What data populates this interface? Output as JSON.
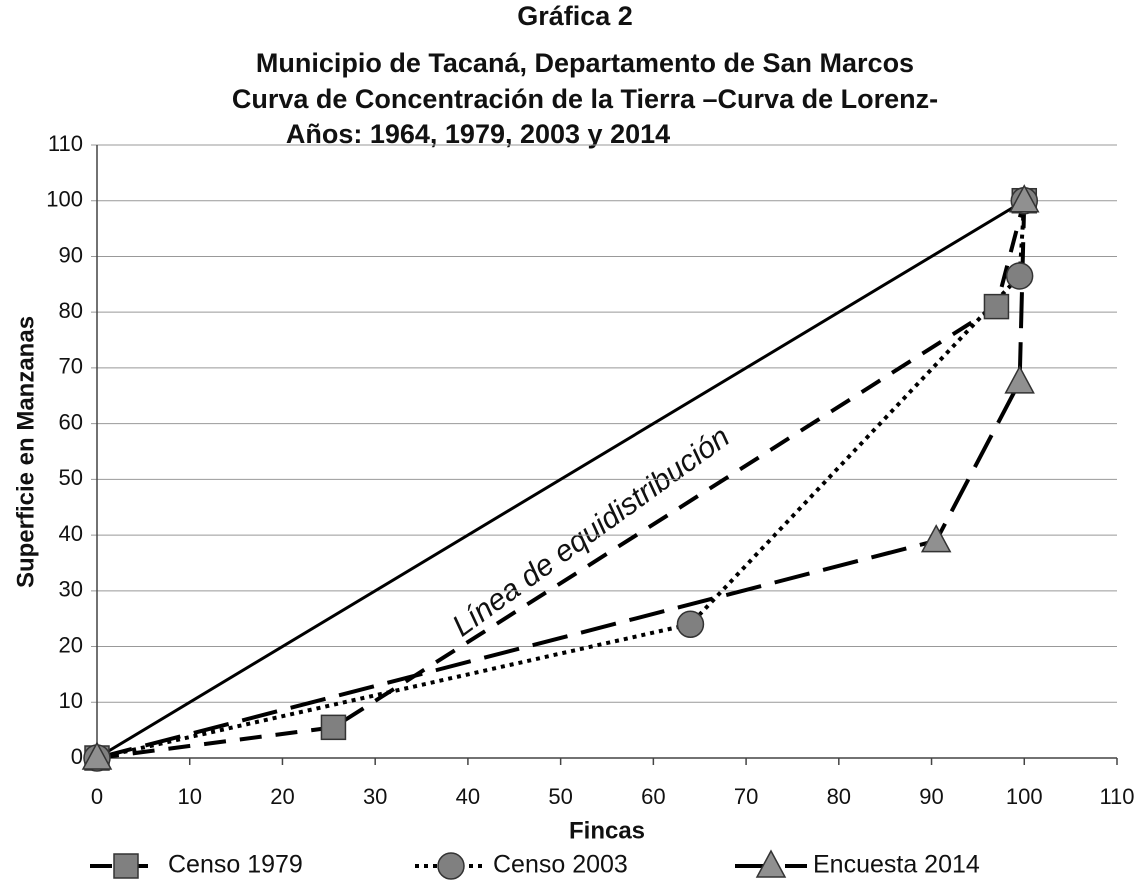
{
  "chart_data": {
    "type": "line",
    "title": [
      "Gráfica 2",
      "Municipio de Tacaná, Departamento de San Marcos",
      "Curva de Concentración de la Tierra –Curva de Lorenz-",
      "Años: 1964, 1979, 2003 y 2014"
    ],
    "x_label": "Fincas",
    "y_label": "Superficie en Manzanas",
    "annotation": "Línea de equidistribución",
    "xlim": [
      0,
      110
    ],
    "ylim": [
      0,
      110
    ],
    "xticks": [
      0,
      10,
      20,
      30,
      40,
      50,
      60,
      70,
      80,
      90,
      100,
      110
    ],
    "yticks": [
      0,
      10,
      20,
      30,
      40,
      50,
      60,
      70,
      80,
      90,
      100,
      110
    ],
    "grid": true,
    "legend": "bottom",
    "series": [
      {
        "color": "#000000",
        "style": "solid",
        "x": [
          0,
          100
        ],
        "values": [
          0,
          100
        ]
      },
      {
        "name": "Censo 1979",
        "color": "#000000",
        "marker_color": "#808080",
        "marker": "square",
        "style": "dashed",
        "x": [
          0,
          25.5,
          97,
          100
        ],
        "values": [
          0,
          5.5,
          81,
          100
        ]
      },
      {
        "name": "Censo 2003",
        "color": "#000000",
        "marker_color": "#808080",
        "marker": "circle",
        "style": "dotted",
        "x": [
          0,
          64,
          99.5,
          100
        ],
        "values": [
          0,
          24,
          86.5,
          100
        ]
      },
      {
        "name": "Encuesta 2014",
        "color": "#000000",
        "marker_color": "#909090",
        "marker": "triangle",
        "style": "longdash",
        "x": [
          0,
          90.5,
          99.5,
          100
        ],
        "values": [
          0,
          39,
          67.5,
          100
        ]
      }
    ]
  }
}
